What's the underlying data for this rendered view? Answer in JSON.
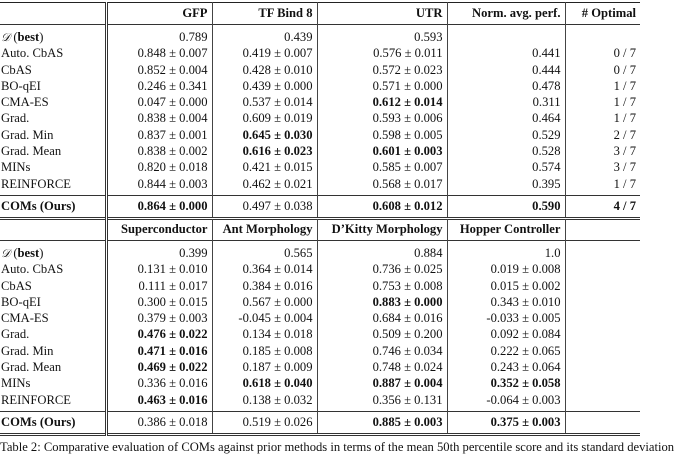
{
  "tables": [
    {
      "headers": [
        "",
        "GFP",
        "TF Bind 8",
        "UTR",
        "Norm. avg. perf.",
        "# Optimal"
      ],
      "rows": [
        {
          "label": [
            {
              "t": "𝒟",
              "cal": true
            },
            {
              "t": " ("
            },
            {
              "t": "best",
              "b": true
            },
            {
              "t": ")"
            }
          ],
          "cells": [
            {
              "v": "0.789"
            },
            {
              "v": "0.439"
            },
            {
              "v": "0.593"
            },
            {
              "v": ""
            },
            {
              "v": ""
            }
          ]
        },
        {
          "label": [
            {
              "t": "Auto. CbAS"
            }
          ],
          "cells": [
            {
              "v": "0.848 ± 0.007"
            },
            {
              "v": "0.419 ± 0.007"
            },
            {
              "v": "0.576 ± 0.011"
            },
            {
              "v": "0.441"
            },
            {
              "v": "0 / 7"
            }
          ]
        },
        {
          "label": [
            {
              "t": "CbAS"
            }
          ],
          "cells": [
            {
              "v": "0.852 ± 0.004"
            },
            {
              "v": "0.428 ± 0.010"
            },
            {
              "v": "0.572 ± 0.023"
            },
            {
              "v": "0.444"
            },
            {
              "v": "0 / 7"
            }
          ]
        },
        {
          "label": [
            {
              "t": "BO-qEI"
            }
          ],
          "cells": [
            {
              "v": "0.246 ± 0.341"
            },
            {
              "v": "0.439 ± 0.000"
            },
            {
              "v": "0.571 ± 0.000"
            },
            {
              "v": "0.478"
            },
            {
              "v": "1 / 7"
            }
          ]
        },
        {
          "label": [
            {
              "t": "CMA-ES"
            }
          ],
          "cells": [
            {
              "v": "0.047 ± 0.000"
            },
            {
              "v": "0.537 ± 0.014"
            },
            {
              "v": "0.612 ± 0.014",
              "b": true
            },
            {
              "v": "0.311"
            },
            {
              "v": "1 / 7"
            }
          ]
        },
        {
          "label": [
            {
              "t": "Grad."
            }
          ],
          "cells": [
            {
              "v": "0.838 ± 0.004"
            },
            {
              "v": "0.609 ± 0.019"
            },
            {
              "v": "0.593 ± 0.006"
            },
            {
              "v": "0.464"
            },
            {
              "v": "1 / 7"
            }
          ]
        },
        {
          "label": [
            {
              "t": "Grad. Min"
            }
          ],
          "cells": [
            {
              "v": "0.837 ± 0.001"
            },
            {
              "v": "0.645 ± 0.030",
              "b": true
            },
            {
              "v": "0.598 ± 0.005"
            },
            {
              "v": "0.529"
            },
            {
              "v": "2 / 7"
            }
          ]
        },
        {
          "label": [
            {
              "t": "Grad. Mean"
            }
          ],
          "cells": [
            {
              "v": "0.838 ± 0.002"
            },
            {
              "v": "0.616 ± 0.023",
              "b": true
            },
            {
              "v": "0.601 ± 0.003",
              "b": true
            },
            {
              "v": "0.528"
            },
            {
              "v": "3 / 7"
            }
          ]
        },
        {
          "label": [
            {
              "t": "MINs"
            }
          ],
          "cells": [
            {
              "v": "0.820 ± 0.018"
            },
            {
              "v": "0.421 ± 0.015"
            },
            {
              "v": "0.585 ± 0.007"
            },
            {
              "v": "0.574"
            },
            {
              "v": "3 / 7"
            }
          ]
        },
        {
          "label": [
            {
              "t": "REINFORCE"
            }
          ],
          "cells": [
            {
              "v": "0.844 ± 0.003"
            },
            {
              "v": "0.462 ± 0.021"
            },
            {
              "v": "0.568 ± 0.017"
            },
            {
              "v": "0.395"
            },
            {
              "v": "1 / 7"
            }
          ]
        }
      ],
      "ours": {
        "label": [
          {
            "t": "COMs (Ours)",
            "b": true
          }
        ],
        "cells": [
          {
            "v": "0.864 ± 0.000",
            "b": true
          },
          {
            "v": "0.497 ± 0.038"
          },
          {
            "v": "0.608 ± 0.012",
            "b": true
          },
          {
            "v": "0.590",
            "b": true
          },
          {
            "v": "4 / 7",
            "b": true
          }
        ]
      }
    },
    {
      "headers": [
        "",
        "Superconductor",
        "Ant Morphology",
        "D’Kitty Morphology",
        "Hopper Controller",
        ""
      ],
      "rows": [
        {
          "label": [
            {
              "t": "𝒟",
              "cal": true
            },
            {
              "t": " ("
            },
            {
              "t": "best",
              "b": true
            },
            {
              "t": ")"
            }
          ],
          "cells": [
            {
              "v": "0.399"
            },
            {
              "v": "0.565"
            },
            {
              "v": "0.884"
            },
            {
              "v": "1.0"
            },
            {
              "v": ""
            }
          ]
        },
        {
          "label": [
            {
              "t": "Auto. CbAS"
            }
          ],
          "cells": [
            {
              "v": "0.131 ± 0.010"
            },
            {
              "v": "0.364 ± 0.014"
            },
            {
              "v": "0.736 ± 0.025"
            },
            {
              "v": "0.019 ± 0.008"
            },
            {
              "v": ""
            }
          ]
        },
        {
          "label": [
            {
              "t": "CbAS"
            }
          ],
          "cells": [
            {
              "v": "0.111 ± 0.017"
            },
            {
              "v": "0.384 ± 0.016"
            },
            {
              "v": "0.753 ± 0.008"
            },
            {
              "v": "0.015 ± 0.002"
            },
            {
              "v": ""
            }
          ]
        },
        {
          "label": [
            {
              "t": "BO-qEI"
            }
          ],
          "cells": [
            {
              "v": "0.300 ± 0.015"
            },
            {
              "v": "0.567 ± 0.000"
            },
            {
              "v": "0.883 ± 0.000",
              "b": true
            },
            {
              "v": "0.343 ± 0.010"
            },
            {
              "v": ""
            }
          ]
        },
        {
          "label": [
            {
              "t": "CMA-ES"
            }
          ],
          "cells": [
            {
              "v": "0.379 ± 0.003"
            },
            {
              "v": "-0.045 ± 0.004"
            },
            {
              "v": "0.684 ± 0.016"
            },
            {
              "v": "-0.033 ± 0.005"
            },
            {
              "v": ""
            }
          ]
        },
        {
          "label": [
            {
              "t": "Grad."
            }
          ],
          "cells": [
            {
              "v": "0.476 ± 0.022",
              "b": true
            },
            {
              "v": "0.134 ± 0.018"
            },
            {
              "v": "0.509 ± 0.200"
            },
            {
              "v": "0.092 ± 0.084"
            },
            {
              "v": ""
            }
          ]
        },
        {
          "label": [
            {
              "t": "Grad. Min"
            }
          ],
          "cells": [
            {
              "v": "0.471 ± 0.016",
              "b": true
            },
            {
              "v": "0.185 ± 0.008"
            },
            {
              "v": "0.746 ± 0.034"
            },
            {
              "v": "0.222 ± 0.065"
            },
            {
              "v": ""
            }
          ]
        },
        {
          "label": [
            {
              "t": "Grad. Mean"
            }
          ],
          "cells": [
            {
              "v": "0.469 ± 0.022",
              "b": true
            },
            {
              "v": "0.187 ± 0.009"
            },
            {
              "v": "0.748 ± 0.024"
            },
            {
              "v": "0.243 ± 0.064"
            },
            {
              "v": ""
            }
          ]
        },
        {
          "label": [
            {
              "t": "MINs"
            }
          ],
          "cells": [
            {
              "v": "0.336 ± 0.016"
            },
            {
              "v": "0.618 ± 0.040",
              "b": true
            },
            {
              "v": "0.887 ± 0.004",
              "b": true
            },
            {
              "v": "0.352 ± 0.058",
              "b": true
            },
            {
              "v": ""
            }
          ]
        },
        {
          "label": [
            {
              "t": "REINFORCE"
            }
          ],
          "cells": [
            {
              "v": "0.463 ± 0.016",
              "b": true
            },
            {
              "v": "0.138 ± 0.032"
            },
            {
              "v": "0.356 ± 0.131"
            },
            {
              "v": "-0.064 ± 0.003"
            },
            {
              "v": ""
            }
          ]
        }
      ],
      "ours": {
        "label": [
          {
            "t": "COMs (Ours)",
            "b": true
          }
        ],
        "cells": [
          {
            "v": "0.386 ± 0.018"
          },
          {
            "v": "0.519 ± 0.026"
          },
          {
            "v": "0.885 ± 0.003",
            "b": true
          },
          {
            "v": "0.375 ± 0.003",
            "b": true
          },
          {
            "v": ""
          }
        ]
      }
    }
  ],
  "caption": "Table 2: Comparative evaluation of COMs against prior methods in terms of the mean 50th percentile score and its standard deviation"
}
